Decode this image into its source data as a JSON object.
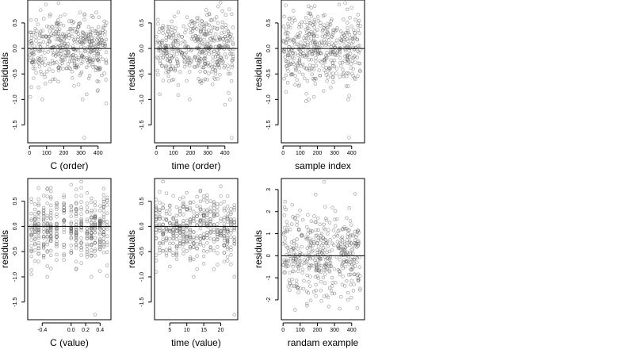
{
  "figure": {
    "type": "scatter-panels",
    "point_style": "open-circle",
    "point_color": "#555555",
    "reference_line_color": "#000000"
  },
  "chart_data": [
    {
      "id": "c-order",
      "type": "scatter",
      "xlabel": "C (order)",
      "ylabel": "residuals",
      "xlim": [
        -10,
        475
      ],
      "ylim": [
        -1.85,
        0.95
      ],
      "xticks": [
        0,
        100,
        200,
        300,
        400
      ],
      "xtick_labels": [
        "0",
        "100",
        "200",
        "300",
        "400"
      ],
      "yticks": [
        -1.5,
        -1.0,
        -0.5,
        0.0,
        0.5
      ],
      "ytick_labels": [
        "-1.5",
        "-1.0",
        "-0.5",
        "0.0",
        "0.5"
      ],
      "hline": 0,
      "n": 450,
      "x_domain": [
        0,
        450
      ],
      "y_mean": 0.0,
      "y_sd": 0.33,
      "outliers": [
        {
          "x": 320,
          "y": -1.75
        },
        {
          "x": 310,
          "y": -1.0
        },
        {
          "x": 75,
          "y": -1.0
        },
        {
          "x": 5,
          "y": -0.95
        }
      ]
    },
    {
      "id": "time-order",
      "type": "scatter",
      "xlabel": "time (order)",
      "ylabel": "residuals",
      "xlim": [
        -10,
        475
      ],
      "ylim": [
        -1.85,
        0.95
      ],
      "xticks": [
        0,
        100,
        200,
        300,
        400
      ],
      "xtick_labels": [
        "0",
        "100",
        "200",
        "300",
        "400"
      ],
      "yticks": [
        -1.5,
        -1.0,
        -0.5,
        0.0,
        0.5
      ],
      "ytick_labels": [
        "-1.5",
        "-1.0",
        "-0.5",
        "0.0",
        "0.5"
      ],
      "hline": 0,
      "n": 450,
      "x_domain": [
        0,
        450
      ],
      "y_mean": 0.0,
      "y_sd": 0.33,
      "outliers": [
        {
          "x": 440,
          "y": -1.75
        },
        {
          "x": 430,
          "y": -1.0
        },
        {
          "x": 195,
          "y": -1.0
        },
        {
          "x": 20,
          "y": -0.9
        }
      ]
    },
    {
      "id": "sample-index",
      "type": "scatter",
      "xlabel": "sample index",
      "ylabel": "residuals",
      "xlim": [
        -10,
        475
      ],
      "ylim": [
        -1.85,
        0.95
      ],
      "xticks": [
        0,
        100,
        200,
        300,
        400
      ],
      "xtick_labels": [
        "0",
        "100",
        "200",
        "300",
        "400"
      ],
      "yticks": [
        -1.5,
        -1.0,
        -0.5,
        0.0,
        0.5
      ],
      "ytick_labels": [
        "-1.5",
        "-1.0",
        "-0.5",
        "0.0",
        "0.5"
      ],
      "hline": 0,
      "n": 450,
      "x_domain": [
        0,
        450
      ],
      "y_mean": 0.0,
      "y_sd": 0.33,
      "outliers": [
        {
          "x": 385,
          "y": -1.75
        },
        {
          "x": 380,
          "y": -1.0
        },
        {
          "x": 150,
          "y": -1.0
        },
        {
          "x": 180,
          "y": -0.95
        }
      ]
    },
    {
      "id": "c-value",
      "type": "scatter",
      "xlabel": "C (value)",
      "ylabel": "residuals",
      "xlim": [
        -0.6,
        0.55
      ],
      "ylim": [
        -1.85,
        0.95
      ],
      "xticks": [
        -0.4,
        0.0,
        0.2,
        0.4
      ],
      "xtick_labels": [
        "-0.4",
        "0.0",
        "0.2",
        "0.4"
      ],
      "yticks": [
        -1.5,
        -1.0,
        -0.5,
        0.0,
        0.5
      ],
      "ytick_labels": [
        "-1.5",
        "-1.0",
        "-0.5",
        "0.0",
        "0.5"
      ],
      "hline": 0,
      "n": 450,
      "x_levels": [
        -0.55,
        -0.5,
        -0.45,
        -0.38,
        -0.33,
        -0.28,
        -0.2,
        -0.1,
        0.0,
        0.07,
        0.14,
        0.22,
        0.28,
        0.33,
        0.4,
        0.45,
        0.5
      ],
      "y_mean": 0.0,
      "y_sd": 0.33,
      "outliers": [
        {
          "x": 0.33,
          "y": -1.75
        },
        {
          "x": 0.28,
          "y": -1.0
        },
        {
          "x": -0.33,
          "y": -1.0
        },
        {
          "x": -0.55,
          "y": -0.95
        }
      ]
    },
    {
      "id": "time-value",
      "type": "scatter",
      "xlabel": "time (value)",
      "ylabel": "residuals",
      "xlim": [
        0.5,
        25
      ],
      "ylim": [
        -1.85,
        0.95
      ],
      "xticks": [
        5,
        10,
        15,
        20
      ],
      "xtick_labels": [
        "5",
        "10",
        "15",
        "20"
      ],
      "yticks": [
        -1.5,
        -1.0,
        -0.5,
        0.0,
        0.5
      ],
      "ytick_labels": [
        "-1.5",
        "-1.0",
        "-0.5",
        "0.0",
        "0.5"
      ],
      "hline": 0,
      "n": 450,
      "x_levels": [
        1,
        2,
        3,
        4,
        5,
        6,
        7,
        8,
        9,
        10,
        11,
        12,
        13,
        14,
        15,
        16,
        17,
        18,
        19,
        20,
        21,
        22,
        23,
        24
      ],
      "y_mean": 0.0,
      "y_sd": 0.33,
      "outliers": [
        {
          "x": 24,
          "y": -1.75
        },
        {
          "x": 24,
          "y": -1.0
        },
        {
          "x": 12,
          "y": -1.0
        },
        {
          "x": 1,
          "y": -0.9
        }
      ]
    },
    {
      "id": "random-example",
      "type": "scatter",
      "xlabel": "randam example",
      "ylabel": "residuals",
      "xlim": [
        -10,
        475
      ],
      "ylim": [
        -2.9,
        3.5
      ],
      "xticks": [
        0,
        100,
        200,
        300,
        400
      ],
      "xtick_labels": [
        "0",
        "100",
        "200",
        "300",
        "400"
      ],
      "yticks": [
        -2,
        -1,
        0,
        1,
        2,
        3
      ],
      "ytick_labels": [
        "-2",
        "-1",
        "0",
        "1",
        "2",
        "3"
      ],
      "hline": 0,
      "n": 450,
      "x_domain": [
        0,
        450
      ],
      "y_mean": 0.0,
      "y_sd": 0.95,
      "outliers": [
        {
          "x": 240,
          "y": 3.35
        },
        {
          "x": 420,
          "y": 2.8
        },
        {
          "x": 70,
          "y": -2.45
        },
        {
          "x": 330,
          "y": -2.4
        }
      ]
    }
  ]
}
